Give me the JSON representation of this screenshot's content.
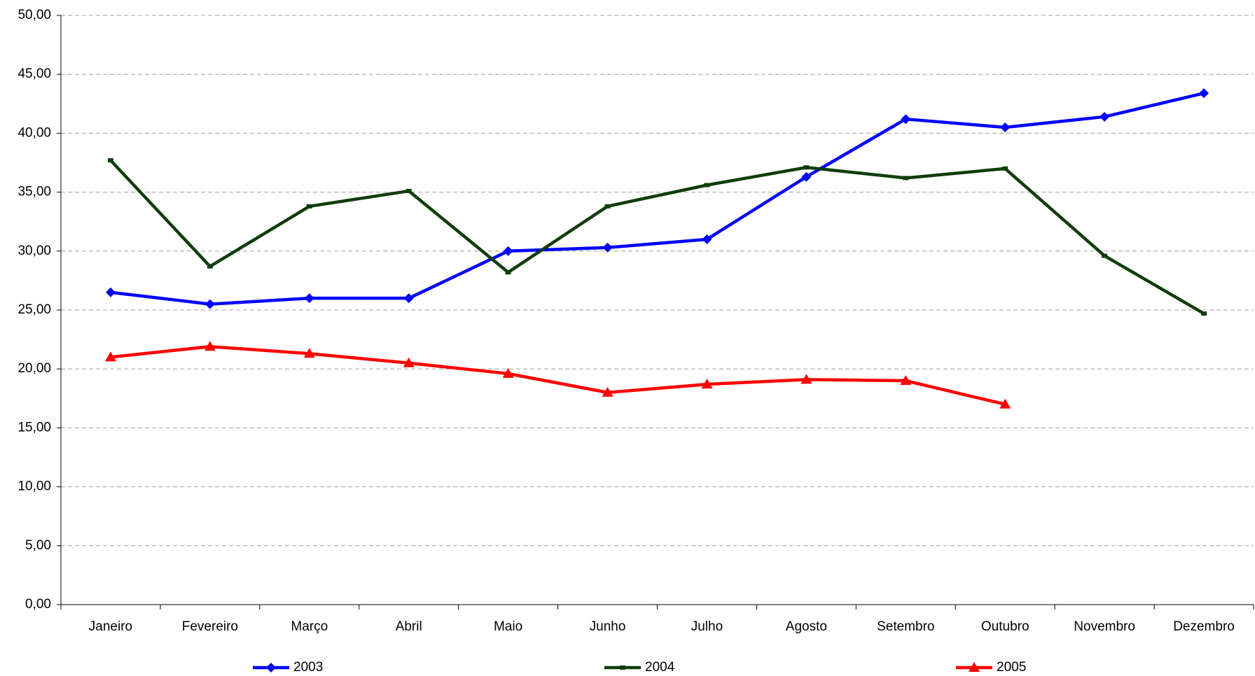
{
  "chart_data": {
    "type": "line",
    "categories": [
      "Janeiro",
      "Fevereiro",
      "Março",
      "Abril",
      "Maio",
      "Junho",
      "Julho",
      "Agosto",
      "Setembro",
      "Outubro",
      "Novembro",
      "Dezembro"
    ],
    "series": [
      {
        "name": "2003",
        "color": "#0000ff",
        "marker": "diamond",
        "values": [
          26.5,
          25.5,
          26.0,
          26.0,
          30.0,
          30.3,
          31.0,
          36.3,
          41.2,
          40.5,
          41.4,
          43.4
        ]
      },
      {
        "name": "2004",
        "color": "#0f3d0a",
        "marker": "square",
        "values": [
          37.7,
          28.7,
          33.8,
          35.1,
          28.2,
          33.8,
          35.6,
          37.1,
          36.2,
          37.0,
          29.6,
          24.7
        ]
      },
      {
        "name": "2005",
        "color": "#ff0000",
        "marker": "triangle",
        "values": [
          21.0,
          21.9,
          21.3,
          20.5,
          19.6,
          18.0,
          18.7,
          19.1,
          19.0,
          17.0,
          null,
          null
        ]
      }
    ],
    "ylim": [
      0,
      50
    ],
    "yticks": [
      {
        "value": 0,
        "label": "0,00"
      },
      {
        "value": 5,
        "label": "5,00"
      },
      {
        "value": 10,
        "label": "10,00"
      },
      {
        "value": 15,
        "label": "15,00"
      },
      {
        "value": 20,
        "label": "20,00"
      },
      {
        "value": 25,
        "label": "25,00"
      },
      {
        "value": 30,
        "label": "30,00"
      },
      {
        "value": 35,
        "label": "35,00"
      },
      {
        "value": 40,
        "label": "40,00"
      },
      {
        "value": 45,
        "label": "45,00"
      },
      {
        "value": 50,
        "label": "50,00"
      }
    ],
    "grid": true,
    "legend": "bottom"
  }
}
